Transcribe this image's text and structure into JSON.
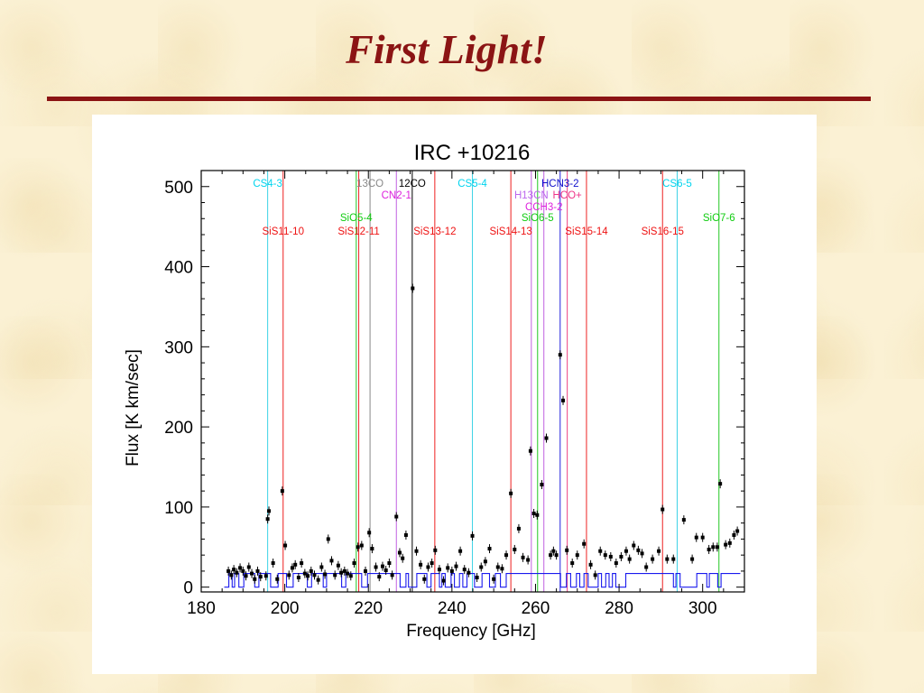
{
  "slide": {
    "title": "First Light!"
  },
  "colors": {
    "title": "#8b1414",
    "rule": "#8b1414",
    "panel": "#ffffff"
  },
  "chart_data": {
    "type": "scatter",
    "title": "IRC +10216",
    "xlabel": "Frequency [GHz]",
    "ylabel": "Flux [K km/sec]",
    "xlim": [
      180,
      310
    ],
    "ylim": [
      -6,
      520
    ],
    "xticks": [
      180,
      200,
      220,
      240,
      260,
      280,
      300
    ],
    "yticks": [
      0,
      100,
      200,
      300,
      400,
      500
    ],
    "grid": false,
    "line_colors": {
      "cyan": "#3bd2e6",
      "red": "#ee2020",
      "gray": "#888888",
      "black": "#000000",
      "violet": "#c060e0",
      "green": "#22c822"
    },
    "lines": [
      {
        "label": "CS4-3",
        "x": 195.9,
        "color": "#3bd2e6",
        "text_color": "#00d4ee",
        "row": 1
      },
      {
        "label": "SiS11-10",
        "x": 199.6,
        "color": "#ee2020",
        "text_color": "#ee1111",
        "row": 4
      },
      {
        "label": "SiS12-11",
        "x": 217.7,
        "color": "#ee2020",
        "text_color": "#ee1111",
        "row": 4
      },
      {
        "label": "SiO5-4",
        "x": 217.1,
        "color": "#22c822",
        "text_color": "#11cc11",
        "row": 3
      },
      {
        "label": "13CO",
        "x": 220.4,
        "color": "#888888",
        "text_color": "#888888",
        "row": 1
      },
      {
        "label": "CN2-1",
        "x": 226.7,
        "color": "#c060e0",
        "text_color": "#dd22dd",
        "row": 2
      },
      {
        "label": "12CO",
        "x": 230.5,
        "color": "#000000",
        "text_color": "#000000",
        "row": 1
      },
      {
        "label": "SiS13-12",
        "x": 235.9,
        "color": "#ee2020",
        "text_color": "#ee1111",
        "row": 4
      },
      {
        "label": "CS5-4",
        "x": 244.9,
        "color": "#3bd2e6",
        "text_color": "#00d4ee",
        "row": 1
      },
      {
        "label": "SiS14-13",
        "x": 254.1,
        "color": "#ee2020",
        "text_color": "#ee1111",
        "row": 4
      },
      {
        "label": "H13CN",
        "x": 259.0,
        "color": "#c060e0",
        "text_color": "#bb66ee",
        "row": 2
      },
      {
        "label": "SiO6-5",
        "x": 260.5,
        "color": "#22c822",
        "text_color": "#11cc11",
        "row": 3
      },
      {
        "label": "CCH3-2",
        "x": 262.0,
        "color": "#c060e0",
        "text_color": "#dd22dd",
        "row": 2.5
      },
      {
        "label": "HCN3-2",
        "x": 265.9,
        "color": "#2222dd",
        "text_color": "#1111cc",
        "row": 1
      },
      {
        "label": "HCO+",
        "x": 267.6,
        "color": "#ee4080",
        "text_color": "#ee3388",
        "row": 2
      },
      {
        "label": "SiS15-14",
        "x": 272.2,
        "color": "#ee2020",
        "text_color": "#ee1111",
        "row": 4
      },
      {
        "label": "SiS16-15",
        "x": 290.4,
        "color": "#ee2020",
        "text_color": "#ee1111",
        "row": 4
      },
      {
        "label": "CS6-5",
        "x": 293.9,
        "color": "#3bd2e6",
        "text_color": "#00d4ee",
        "row": 1
      },
      {
        "label": "SiO7-6",
        "x": 303.9,
        "color": "#22c822",
        "text_color": "#11cc11",
        "row": 3
      }
    ],
    "points": [
      [
        186.5,
        20
      ],
      [
        187.2,
        15
      ],
      [
        187.8,
        22
      ],
      [
        188.5,
        18
      ],
      [
        189.3,
        24
      ],
      [
        190.0,
        20
      ],
      [
        190.7,
        14
      ],
      [
        191.4,
        25
      ],
      [
        192.1,
        17
      ],
      [
        192.8,
        10
      ],
      [
        193.5,
        20
      ],
      [
        194.2,
        13
      ],
      [
        195.5,
        14
      ],
      [
        195.9,
        85
      ],
      [
        196.2,
        95
      ],
      [
        197.2,
        30
      ],
      [
        198.2,
        10
      ],
      [
        199.4,
        120
      ],
      [
        200.1,
        52
      ],
      [
        201.0,
        15
      ],
      [
        201.8,
        24
      ],
      [
        202.5,
        28
      ],
      [
        203.3,
        12
      ],
      [
        204.0,
        30
      ],
      [
        204.8,
        17
      ],
      [
        205.5,
        14
      ],
      [
        206.3,
        20
      ],
      [
        207.1,
        15
      ],
      [
        208.0,
        9
      ],
      [
        208.8,
        25
      ],
      [
        209.6,
        16
      ],
      [
        210.4,
        60
      ],
      [
        211.2,
        33
      ],
      [
        212.0,
        15
      ],
      [
        212.8,
        27
      ],
      [
        213.5,
        18
      ],
      [
        214.3,
        20
      ],
      [
        215.0,
        17
      ],
      [
        215.8,
        14
      ],
      [
        216.6,
        30
      ],
      [
        217.5,
        50
      ],
      [
        218.4,
        52
      ],
      [
        219.3,
        20
      ],
      [
        220.2,
        68
      ],
      [
        220.9,
        48
      ],
      [
        221.8,
        25
      ],
      [
        222.6,
        13
      ],
      [
        223.4,
        26
      ],
      [
        224.2,
        21
      ],
      [
        225.0,
        30
      ],
      [
        225.7,
        15
      ],
      [
        226.7,
        88
      ],
      [
        227.5,
        43
      ],
      [
        228.2,
        36
      ],
      [
        229.0,
        65
      ],
      [
        230.6,
        373
      ],
      [
        231.5,
        45
      ],
      [
        232.5,
        28
      ],
      [
        233.4,
        10
      ],
      [
        234.3,
        25
      ],
      [
        235.2,
        30
      ],
      [
        236.0,
        46
      ],
      [
        237.0,
        22
      ],
      [
        238.0,
        8
      ],
      [
        239.0,
        24
      ],
      [
        240.0,
        20
      ],
      [
        241.0,
        26
      ],
      [
        242.0,
        45
      ],
      [
        243.0,
        22
      ],
      [
        244.0,
        18
      ],
      [
        244.9,
        64
      ],
      [
        246.0,
        12
      ],
      [
        247.0,
        25
      ],
      [
        248.0,
        32
      ],
      [
        249.0,
        48
      ],
      [
        250.0,
        10
      ],
      [
        251.0,
        25
      ],
      [
        252.0,
        23
      ],
      [
        253.0,
        40
      ],
      [
        254.1,
        117
      ],
      [
        255.0,
        47
      ],
      [
        256.0,
        73
      ],
      [
        257.0,
        37
      ],
      [
        258.2,
        34
      ],
      [
        258.8,
        170
      ],
      [
        259.6,
        92
      ],
      [
        260.4,
        90
      ],
      [
        261.5,
        128
      ],
      [
        262.6,
        186
      ],
      [
        263.6,
        40
      ],
      [
        264.3,
        45
      ],
      [
        265.0,
        40
      ],
      [
        265.9,
        290
      ],
      [
        266.6,
        233
      ],
      [
        267.5,
        46
      ],
      [
        268.8,
        30
      ],
      [
        270.0,
        40
      ],
      [
        271.6,
        54
      ],
      [
        273.2,
        28
      ],
      [
        274.3,
        15
      ],
      [
        275.5,
        45
      ],
      [
        276.7,
        40
      ],
      [
        278.0,
        38
      ],
      [
        279.3,
        30
      ],
      [
        280.5,
        38
      ],
      [
        281.7,
        45
      ],
      [
        282.5,
        35
      ],
      [
        283.5,
        52
      ],
      [
        284.6,
        46
      ],
      [
        285.5,
        42
      ],
      [
        286.5,
        25
      ],
      [
        288.0,
        35
      ],
      [
        289.5,
        45
      ],
      [
        290.4,
        97
      ],
      [
        291.5,
        35
      ],
      [
        293.0,
        35
      ],
      [
        295.5,
        84
      ],
      [
        297.5,
        35
      ],
      [
        298.5,
        62
      ],
      [
        300.0,
        62
      ],
      [
        301.5,
        47
      ],
      [
        302.5,
        50
      ],
      [
        303.5,
        50
      ],
      [
        304.2,
        129
      ],
      [
        305.5,
        53
      ],
      [
        306.5,
        55
      ],
      [
        307.5,
        65
      ],
      [
        308.3,
        70
      ]
    ],
    "baseline_segments": [
      [
        185.5,
        186.6,
        0
      ],
      [
        186.6,
        187.4,
        17
      ],
      [
        187.4,
        188.0,
        0
      ],
      [
        188.0,
        189.0,
        17
      ],
      [
        189.0,
        190.2,
        0
      ],
      [
        190.2,
        192.8,
        17
      ],
      [
        192.8,
        193.8,
        0
      ],
      [
        193.8,
        196.6,
        17
      ],
      [
        196.6,
        198.4,
        0
      ],
      [
        198.4,
        200.4,
        17
      ],
      [
        200.4,
        202.0,
        0
      ],
      [
        202.0,
        205.4,
        17
      ],
      [
        205.4,
        206.4,
        0
      ],
      [
        206.4,
        209.2,
        17
      ],
      [
        209.2,
        210.0,
        0
      ],
      [
        210.0,
        213.6,
        17
      ],
      [
        213.6,
        214.6,
        0
      ],
      [
        214.6,
        218.4,
        17
      ],
      [
        218.4,
        219.8,
        0
      ],
      [
        219.8,
        227.6,
        17
      ],
      [
        227.6,
        229.0,
        0
      ],
      [
        229.0,
        229.6,
        17
      ],
      [
        229.6,
        231.6,
        0
      ],
      [
        231.6,
        234.0,
        17
      ],
      [
        234.0,
        235.0,
        0
      ],
      [
        235.0,
        237.0,
        17
      ],
      [
        237.0,
        237.6,
        0
      ],
      [
        237.6,
        238.4,
        17
      ],
      [
        238.4,
        239.8,
        0
      ],
      [
        239.8,
        240.6,
        17
      ],
      [
        240.6,
        241.8,
        0
      ],
      [
        241.8,
        242.6,
        17
      ],
      [
        242.6,
        243.6,
        0
      ],
      [
        243.6,
        245.4,
        17
      ],
      [
        245.4,
        247.2,
        0
      ],
      [
        247.2,
        249.0,
        17
      ],
      [
        249.0,
        250.4,
        0
      ],
      [
        250.4,
        251.6,
        17
      ],
      [
        251.6,
        253.0,
        0
      ],
      [
        253.0,
        266.0,
        17
      ],
      [
        266.0,
        267.4,
        0
      ],
      [
        267.4,
        268.4,
        17
      ],
      [
        268.4,
        269.8,
        0
      ],
      [
        269.8,
        270.6,
        17
      ],
      [
        270.6,
        271.6,
        0
      ],
      [
        271.6,
        272.6,
        17
      ],
      [
        272.6,
        275.0,
        0
      ],
      [
        275.0,
        275.8,
        17
      ],
      [
        275.8,
        276.8,
        0
      ],
      [
        276.8,
        277.6,
        17
      ],
      [
        277.6,
        278.4,
        0
      ],
      [
        278.4,
        279.2,
        17
      ],
      [
        279.2,
        281.6,
        0
      ],
      [
        281.6,
        293.0,
        17
      ],
      [
        293.0,
        293.6,
        0
      ],
      [
        293.6,
        294.6,
        17
      ],
      [
        294.6,
        298.6,
        0
      ],
      [
        298.6,
        301.0,
        17
      ],
      [
        301.0,
        301.6,
        0
      ],
      [
        301.6,
        303.6,
        17
      ],
      [
        303.6,
        304.4,
        0
      ],
      [
        304.4,
        309.0,
        17
      ]
    ]
  }
}
